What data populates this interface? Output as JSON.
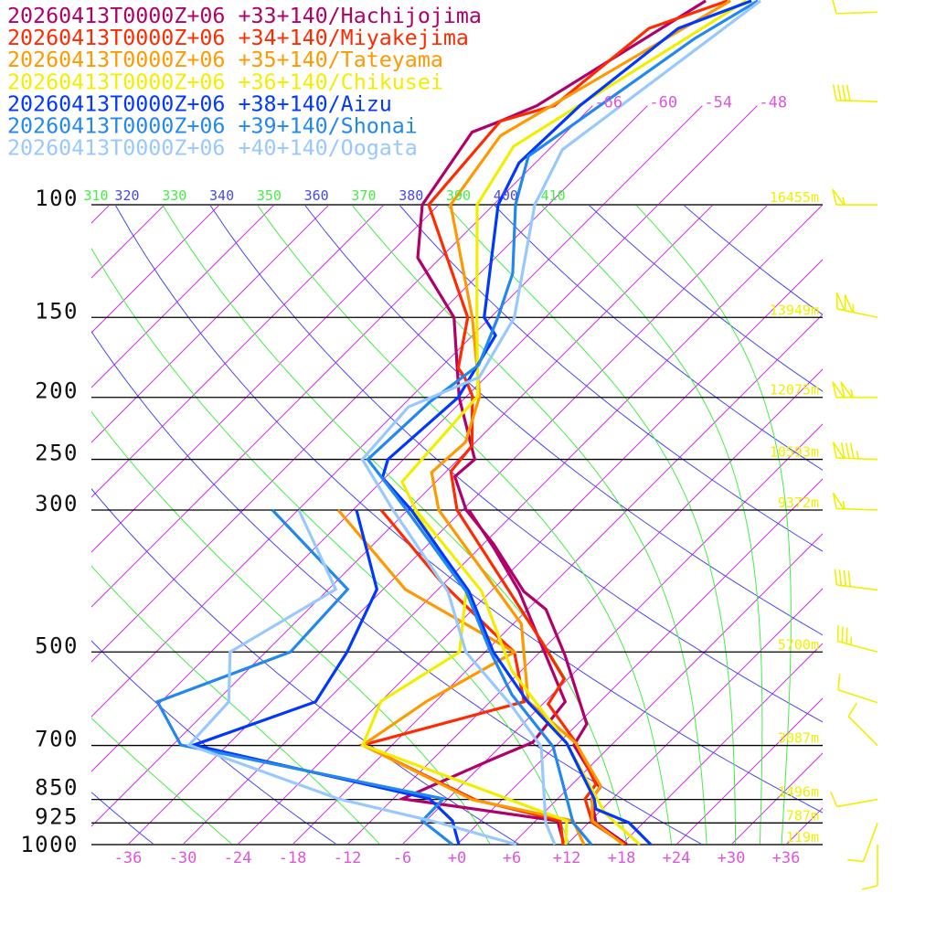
{
  "chart_data": {
    "type": "line",
    "kind": "skew-T log-p aerological diagram",
    "x_axis": {
      "unit": "degC",
      "range": [
        -40,
        40
      ]
    },
    "y_axis": {
      "unit": "hPa",
      "scale": "log",
      "range": [
        1000,
        100
      ]
    },
    "colors": {
      "isotherm": "#cc33dd",
      "dry_adiabat": "#4848f0",
      "moist_adiabat": "#44ee44",
      "tick_label": "#dd55dd",
      "height_label": "#f0f000",
      "wind_barb": "#f0f000",
      "pressure_line": "#000000"
    },
    "series": [
      {
        "label": "20260413T0000Z+06 +33+140/Hachijojima",
        "color": "#b0006a",
        "temperature": [
          [
            1000,
            18.6
          ],
          [
            924,
            12.8
          ],
          [
            848,
            9.7
          ],
          [
            815,
            9.4
          ],
          [
            699,
            1.9
          ],
          [
            648,
            1.0
          ],
          [
            506,
            -8.9
          ],
          [
            429,
            -16.0
          ],
          [
            402,
            -20.4
          ],
          [
            339,
            -28.9
          ],
          [
            300,
            -35.6
          ],
          [
            266,
            -40.5
          ],
          [
            250,
            -40.2
          ],
          [
            200,
            -48.7
          ],
          [
            150,
            -58.0
          ],
          [
            121,
            -68.5
          ],
          [
            100,
            -73.8
          ],
          [
            77,
            -76.3
          ],
          [
            74,
            -74.4
          ],
          [
            70,
            -72.1
          ],
          [
            48,
            -65.1
          ]
        ],
        "dewpoint": [
          [
            1000,
            11.7
          ],
          [
            918,
            8.4
          ],
          [
            848,
            -11.0
          ],
          [
            734,
            -5.4
          ],
          [
            692,
            -2.9
          ],
          [
            598,
            -3.8
          ],
          [
            402,
            -20.9
          ],
          [
            344,
            -28.4
          ],
          [
            300,
            -35.3
          ]
        ]
      },
      {
        "label": "20260413T0000Z+06 +34+140/Miyakejima",
        "color": "#ff2a00",
        "temperature": [
          [
            1000,
            18.4
          ],
          [
            924,
            12.4
          ],
          [
            848,
            9.0
          ],
          [
            805,
            8.6
          ],
          [
            692,
            1.8
          ],
          [
            603,
            -5.4
          ],
          [
            551,
            -6.4
          ],
          [
            483,
            -12.8
          ],
          [
            368,
            -26.4
          ],
          [
            300,
            -36.6
          ],
          [
            261,
            -41.5
          ],
          [
            238,
            -42.0
          ],
          [
            199,
            -47.4
          ],
          [
            186,
            -50.3
          ],
          [
            180,
            -52.0
          ],
          [
            150,
            -56.5
          ],
          [
            100,
            -73.1
          ],
          [
            74,
            -74.4
          ],
          [
            70,
            -70.2
          ],
          [
            53,
            -68.3
          ],
          [
            48,
            -62.7
          ]
        ],
        "dewpoint": [
          [
            1000,
            11.6
          ],
          [
            918,
            8.7
          ],
          [
            851,
            -2.9
          ],
          [
            699,
            -21.2
          ],
          [
            598,
            -8.3
          ],
          [
            500,
            -14.8
          ],
          [
            471,
            -18.6
          ],
          [
            389,
            -30.4
          ],
          [
            300,
            -44.9
          ]
        ]
      },
      {
        "label": "20260413T0000Z+06 +35+140/Tateyama",
        "color": "#ff9900",
        "temperature": [
          [
            1000,
            18.2
          ],
          [
            918,
            12.2
          ],
          [
            846,
            9.7
          ],
          [
            810,
            9.3
          ],
          [
            694,
            1.9
          ],
          [
            597,
            -7.9
          ],
          [
            452,
            -17.1
          ],
          [
            300,
            -38.6
          ],
          [
            262,
            -43.5
          ],
          [
            235,
            -43.1
          ],
          [
            199,
            -46.6
          ],
          [
            150,
            -56.0
          ],
          [
            100,
            -70.7
          ],
          [
            78,
            -72.8
          ],
          [
            48,
            -62.4
          ]
        ],
        "dewpoint": [
          [
            1000,
            13.9
          ],
          [
            918,
            10.1
          ],
          [
            851,
            -3.2
          ],
          [
            699,
            -21.2
          ],
          [
            597,
            -19.0
          ],
          [
            500,
            -14.8
          ],
          [
            399,
            -33.6
          ],
          [
            300,
            -49.6
          ]
        ]
      },
      {
        "label": "20260413T0000Z+06 +36+140/Chikusei",
        "color": "#f2ee00",
        "temperature": [
          [
            1000,
            20.0
          ],
          [
            894,
            12.8
          ],
          [
            846,
            10.2
          ],
          [
            694,
            0.9
          ],
          [
            534,
            -13.1
          ],
          [
            402,
            -25.0
          ],
          [
            300,
            -41.1
          ],
          [
            271,
            -45.7
          ],
          [
            199,
            -46.8
          ],
          [
            150,
            -55.5
          ],
          [
            100,
            -67.8
          ],
          [
            81,
            -70.2
          ],
          [
            48,
            -60.7
          ]
        ],
        "dewpoint": [
          [
            1000,
            11.9
          ],
          [
            918,
            9.4
          ],
          [
            699,
            -21.2
          ],
          [
            597,
            -24.0
          ],
          [
            500,
            -20.8
          ],
          [
            402,
            -26.7
          ],
          [
            300,
            -41.3
          ]
        ]
      },
      {
        "label": "20260413T0000Z+06 +38+140/Aizu",
        "color": "#0038ff",
        "temperature": [
          [
            1000,
            21.2
          ],
          [
            924,
            16.4
          ],
          [
            880,
            11.3
          ],
          [
            848,
            10.0
          ],
          [
            694,
            0.9
          ],
          [
            597,
            -8.0
          ],
          [
            500,
            -17.1
          ],
          [
            402,
            -26.4
          ],
          [
            300,
            -41.6
          ],
          [
            267,
            -48.3
          ],
          [
            250,
            -49.7
          ],
          [
            200,
            -48.8
          ],
          [
            160,
            -51.5
          ],
          [
            150,
            -54.7
          ],
          [
            100,
            -65.5
          ],
          [
            86,
            -67.8
          ],
          [
            70,
            -67.4
          ],
          [
            53,
            -65.1
          ],
          [
            48,
            -60.1
          ]
        ],
        "dewpoint": [
          [
            1000,
            0.2
          ],
          [
            918,
            -3.1
          ],
          [
            848,
            -8.0
          ],
          [
            699,
            -39.7
          ],
          [
            598,
            -31.1
          ],
          [
            500,
            -33.1
          ],
          [
            399,
            -36.7
          ],
          [
            300,
            -47.6
          ]
        ]
      },
      {
        "label": "20260413T0000Z+06 +39+140/Shonai",
        "color": "#2288ee",
        "temperature": [
          [
            1000,
            14.7
          ],
          [
            924,
            10.3
          ],
          [
            848,
            7.0
          ],
          [
            703,
            -0.2
          ],
          [
            583,
            -10.4
          ],
          [
            500,
            -17.4
          ],
          [
            402,
            -26.7
          ],
          [
            300,
            -42.1
          ],
          [
            250,
            -51.9
          ],
          [
            203,
            -51.4
          ],
          [
            178,
            -50.1
          ],
          [
            150,
            -53.2
          ],
          [
            128,
            -56.4
          ],
          [
            100,
            -63.6
          ],
          [
            84,
            -67.5
          ],
          [
            55,
            -62.2
          ],
          [
            48,
            -59.4
          ]
        ],
        "dewpoint": [
          [
            1000,
            -0.5
          ],
          [
            918,
            -6.4
          ],
          [
            848,
            -6.5
          ],
          [
            699,
            -41.1
          ],
          [
            598,
            -48.4
          ],
          [
            500,
            -39.3
          ],
          [
            399,
            -39.9
          ],
          [
            300,
            -56.8
          ]
        ]
      },
      {
        "label": "20260413T0000Z+06 +40+140/Oogata",
        "color": "#99c8ff",
        "temperature": [
          [
            1000,
            10.7
          ],
          [
            924,
            7.3
          ],
          [
            703,
            -1.5
          ],
          [
            607,
            -9.2
          ],
          [
            500,
            -20.1
          ],
          [
            402,
            -28.7
          ],
          [
            300,
            -43.6
          ],
          [
            250,
            -52.5
          ],
          [
            207,
            -53.2
          ],
          [
            186,
            -48.7
          ],
          [
            150,
            -51.4
          ],
          [
            100,
            -61.5
          ],
          [
            82,
            -64.5
          ],
          [
            48,
            -59.1
          ]
        ],
        "dewpoint": [
          [
            1000,
            6.5
          ],
          [
            924,
            -4.4
          ],
          [
            848,
            -18.0
          ],
          [
            699,
            -40.2
          ],
          [
            598,
            -40.6
          ],
          [
            500,
            -45.9
          ],
          [
            399,
            -41.2
          ],
          [
            300,
            -53.9
          ]
        ]
      }
    ],
    "pressure_levels": [
      {
        "p": 100,
        "label": "100",
        "height": "16455m"
      },
      {
        "p": 150,
        "label": "150",
        "height": "13949m"
      },
      {
        "p": 200,
        "label": "200",
        "height": "12075m"
      },
      {
        "p": 250,
        "label": "250",
        "height": "10593m"
      },
      {
        "p": 300,
        "label": "300",
        "height": "9372m"
      },
      {
        "p": 500,
        "label": "500",
        "height": "5700m"
      },
      {
        "p": 700,
        "label": "700",
        "height": "3087m"
      },
      {
        "p": 850,
        "label": "850",
        "height": "1496m"
      },
      {
        "p": 925,
        "label": "925",
        "height": "787m"
      },
      {
        "p": 1000,
        "label": "1000",
        "height": "119m"
      }
    ],
    "x_ticks": [
      {
        "t": -36,
        "label": "-36"
      },
      {
        "t": -30,
        "label": "-30"
      },
      {
        "t": -24,
        "label": "-24"
      },
      {
        "t": -18,
        "label": "-18"
      },
      {
        "t": -12,
        "label": "-12"
      },
      {
        "t": -6,
        "label": "-6"
      },
      {
        "t": 0,
        "label": "+0"
      },
      {
        "t": 6,
        "label": "+6"
      },
      {
        "t": 12,
        "label": "+12"
      },
      {
        "t": 18,
        "label": "+18"
      },
      {
        "t": 24,
        "label": "+24"
      },
      {
        "t": 30,
        "label": "+30"
      },
      {
        "t": 36,
        "label": "+36"
      }
    ],
    "isotherm_labels": [
      {
        "t": -66,
        "label": "-66"
      },
      {
        "t": -60,
        "label": "-60"
      },
      {
        "t": -54,
        "label": "-54"
      },
      {
        "t": -48,
        "label": "-48"
      }
    ],
    "theta_labels": [
      {
        "theta": 310,
        "label": "310",
        "kind": "moist"
      },
      {
        "theta": 320,
        "label": "320",
        "kind": "dry"
      },
      {
        "theta": 330,
        "label": "330",
        "kind": "moist"
      },
      {
        "theta": 340,
        "label": "340",
        "kind": "dry"
      },
      {
        "theta": 350,
        "label": "350",
        "kind": "moist"
      },
      {
        "theta": 360,
        "label": "360",
        "kind": "dry"
      },
      {
        "theta": 370,
        "label": "370",
        "kind": "moist"
      },
      {
        "theta": 380,
        "label": "380",
        "kind": "dry"
      },
      {
        "theta": 390,
        "label": "390",
        "kind": "moist"
      },
      {
        "theta": 400,
        "label": "400",
        "kind": "dry"
      },
      {
        "theta": 410,
        "label": "410",
        "kind": "moist"
      }
    ],
    "wind_barbs": [
      {
        "p": 50,
        "speed_kt": 10,
        "dir_deg": 268
      },
      {
        "p": 69,
        "speed_kt": 40,
        "dir_deg": 272
      },
      {
        "p": 100,
        "speed_kt": 55,
        "dir_deg": 270
      },
      {
        "p": 150,
        "speed_kt": 105,
        "dir_deg": 282
      },
      {
        "p": 200,
        "speed_kt": 105,
        "dir_deg": 270
      },
      {
        "p": 250,
        "speed_kt": 85,
        "dir_deg": 272
      },
      {
        "p": 300,
        "speed_kt": 55,
        "dir_deg": 272
      },
      {
        "p": 400,
        "speed_kt": 40,
        "dir_deg": 277
      },
      {
        "p": 500,
        "speed_kt": 35,
        "dir_deg": 285
      },
      {
        "p": 600,
        "speed_kt": 10,
        "dir_deg": 288
      },
      {
        "p": 700,
        "speed_kt": 10,
        "dir_deg": 315
      },
      {
        "p": 850,
        "speed_kt": 10,
        "dir_deg": 260
      },
      {
        "p": 925,
        "speed_kt": 10,
        "dir_deg": 200
      },
      {
        "p": 1000,
        "speed_kt": 10,
        "dir_deg": 180
      }
    ]
  }
}
